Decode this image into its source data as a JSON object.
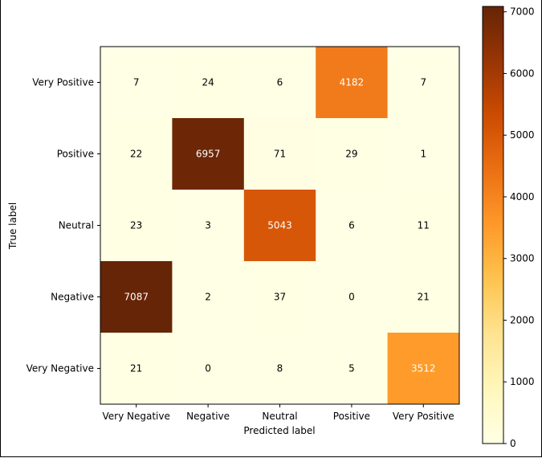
{
  "chart_data": {
    "type": "heatmap",
    "xlabel": "Predicted label",
    "ylabel": "True label",
    "x_categories": [
      "Very Negative",
      "Negative",
      "Neutral",
      "Positive",
      "Very Positive"
    ],
    "y_categories": [
      "Very Positive",
      "Positive",
      "Neutral",
      "Negative",
      "Very Negative"
    ],
    "matrix": [
      [
        7,
        24,
        6,
        4182,
        7
      ],
      [
        22,
        6957,
        71,
        29,
        1
      ],
      [
        23,
        3,
        5043,
        6,
        11
      ],
      [
        7087,
        2,
        37,
        0,
        21
      ],
      [
        21,
        0,
        8,
        5,
        3512
      ]
    ],
    "colormap": "YlOrBr",
    "colorbar": {
      "range": [
        0,
        7087
      ],
      "ticks": [
        0,
        1000,
        2000,
        3000,
        4000,
        5000,
        6000,
        7000
      ]
    },
    "grid": false
  }
}
